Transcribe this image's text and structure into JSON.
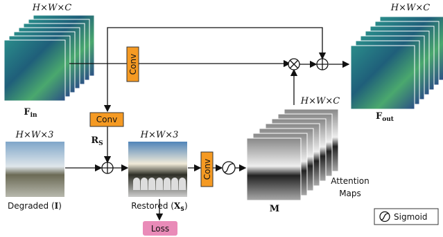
{
  "feature_in": {
    "dims": "H×W×C",
    "label": "F",
    "label_sub": "in"
  },
  "conv_top": "Conv",
  "conv_res": "Conv",
  "residual": {
    "label": "R",
    "label_sub": "S"
  },
  "degraded": {
    "dims": "H×W×3",
    "label": "Degraded (",
    "label_symbol": "I",
    "label_close": ")"
  },
  "restored": {
    "dims": "H×W×3",
    "label": "Restored (",
    "label_symbol": "X",
    "label_sub": "S",
    "label_close": ")"
  },
  "loss": "Loss",
  "conv_mid": "Conv",
  "attention": {
    "dims": "H×W×C",
    "label": "M",
    "caption_line1": "Attention",
    "caption_line2": "Maps"
  },
  "feature_out": {
    "dims": "H×W×C",
    "label": "F",
    "label_sub": "out"
  },
  "legend": {
    "sigmoid": "Sigmoid"
  }
}
